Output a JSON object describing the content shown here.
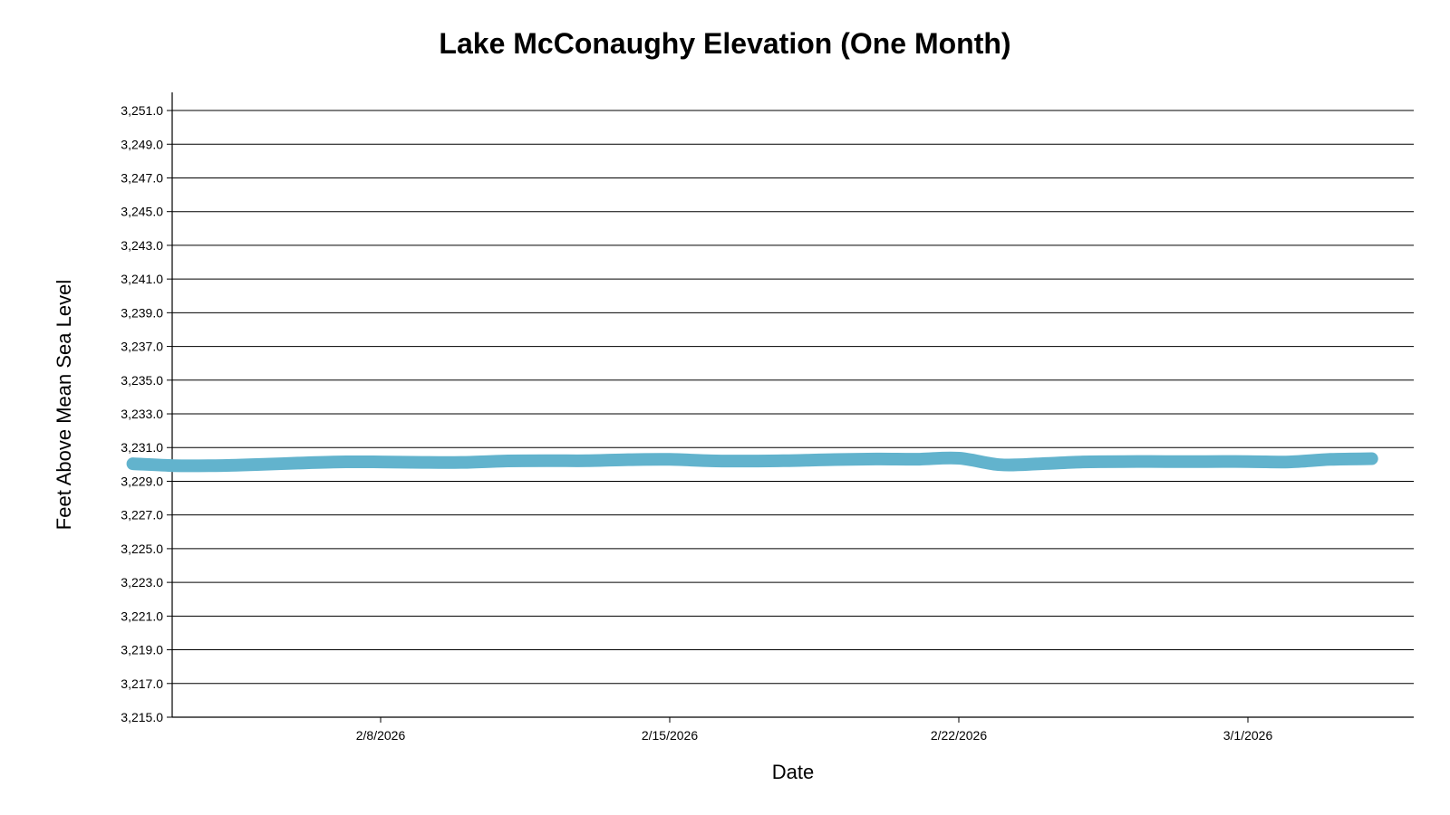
{
  "chart_data": {
    "type": "line",
    "title": "Lake McConaughy Elevation (One Month)",
    "xlabel": "Date",
    "ylabel": "Feet Above Mean Sea Level",
    "ylim": [
      3215.0,
      3252.0
    ],
    "xlim": [
      "2026-02-01",
      "2026-03-06"
    ],
    "y_ticks": [
      "3,215.0",
      "3,217.0",
      "3,219.0",
      "3,221.0",
      "3,223.0",
      "3,225.0",
      "3,227.0",
      "3,229.0",
      "3,231.0",
      "3,233.0",
      "3,235.0",
      "3,237.0",
      "3,239.0",
      "3,241.0",
      "3,243.0",
      "3,245.0",
      "3,247.0",
      "3,249.0",
      "3,251.0"
    ],
    "x_ticks": [
      "2/8/2026",
      "2/15/2026",
      "2/22/2026",
      "3/1/2026"
    ],
    "grid": true,
    "series": [
      {
        "color": "#62b3cd",
        "x": [
          "2026-02-02",
          "2026-02-03",
          "2026-02-04",
          "2026-02-05",
          "2026-02-06",
          "2026-02-07",
          "2026-02-08",
          "2026-02-09",
          "2026-02-10",
          "2026-02-11",
          "2026-02-12",
          "2026-02-13",
          "2026-02-14",
          "2026-02-15",
          "2026-02-16",
          "2026-02-17",
          "2026-02-18",
          "2026-02-19",
          "2026-02-20",
          "2026-02-21",
          "2026-02-22",
          "2026-02-23",
          "2026-02-24",
          "2026-02-25",
          "2026-02-26",
          "2026-02-27",
          "2026-02-28",
          "2026-03-01",
          "2026-03-02",
          "2026-03-03",
          "2026-03-04"
        ],
        "values": [
          3230.04,
          3229.93,
          3229.93,
          3229.99,
          3230.08,
          3230.15,
          3230.15,
          3230.12,
          3230.12,
          3230.2,
          3230.22,
          3230.22,
          3230.28,
          3230.3,
          3230.21,
          3230.2,
          3230.23,
          3230.29,
          3230.32,
          3230.31,
          3230.37,
          3229.98,
          3230.04,
          3230.15,
          3230.17,
          3230.17,
          3230.17,
          3230.17,
          3230.15,
          3230.3,
          3230.34
        ]
      }
    ]
  }
}
